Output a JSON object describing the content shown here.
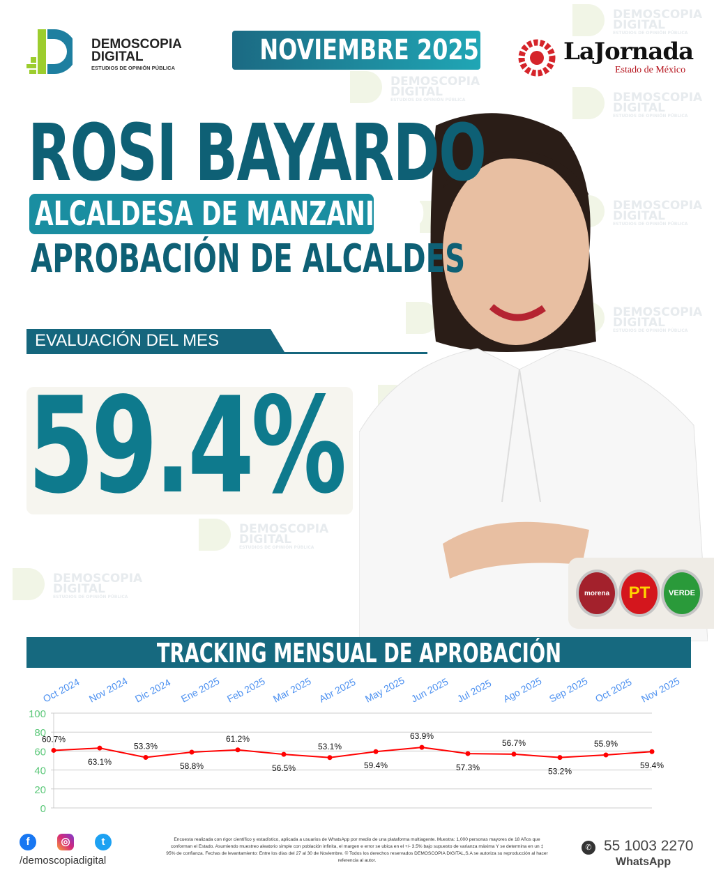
{
  "brand": {
    "name_line1": "DEMOSCOPIA",
    "name_line2": "DIGITAL",
    "tagline": "ESTUDIOS DE OPINIÓN PÚBLICA"
  },
  "watermark": {
    "line1": "DEMOSCOPIA",
    "line2": "DIGITAL",
    "line3": "ESTUDIOS DE OPINIÓN PÚBLICA"
  },
  "header": {
    "month": "NOVIEMBRE 2025"
  },
  "partner": {
    "name": "LaJornada",
    "subtitle": "Estado de México"
  },
  "headline": {
    "name": "ROSI BAYARDO",
    "role": "ALCALDESA DE MANZANILLO",
    "subtitle": "APROBACIÓN DE ALCALDES"
  },
  "evaluation": {
    "label": "EVALUACIÓN DEL MES",
    "value": "59.4%"
  },
  "parties": [
    {
      "name": "morena",
      "color": "#a3212c"
    },
    {
      "name": "PT",
      "color": "#d4161d"
    },
    {
      "name": "VERDE",
      "color": "#2a9a3a"
    }
  ],
  "tracking": {
    "title": "TRACKING MENSUAL DE APROBACIÓN"
  },
  "chart_data": {
    "type": "line",
    "categories": [
      "Oct 2024",
      "Nov 2024",
      "Dic 2024",
      "Ene 2025",
      "Feb 2025",
      "Mar 2025",
      "Abr 2025",
      "May 2025",
      "Jun 2025",
      "Jul 2025",
      "Ago 2025",
      "Sep 2025",
      "Oct 2025",
      "Nov 2025"
    ],
    "values": [
      60.7,
      63.1,
      53.3,
      58.8,
      61.2,
      56.5,
      53.1,
      59.4,
      63.9,
      57.3,
      56.7,
      53.2,
      55.9,
      59.4
    ],
    "data_labels": [
      "60.7%",
      "63.1%",
      "53.3%",
      "58.8%",
      "61.2%",
      "56.5%",
      "53.1%",
      "59.4%",
      "63.9%",
      "57.3%",
      "56.7%",
      "53.2%",
      "55.9%",
      "59.4%"
    ],
    "yticks": [
      0,
      20,
      40,
      60,
      80,
      100
    ],
    "ylim": [
      0,
      100
    ],
    "grid": true,
    "line_color": "#ff0000",
    "tick_color": "#4a8ff0",
    "ytick_color": "#5cc87a"
  },
  "footer": {
    "handle": "/demoscopiadigital",
    "note": "Encuesta realizada con rigor científico y estadístico, aplicada a usuarios de WhatsApp por medio de una plataforma multiagente. Muestra: 1,000 personas mayores de 18 Años que conforman el Estado. Asumiendo muestreo aleatorio simple con población infinita, el margen e error se ubica en el +/- 3.5% bajo supuesto de varianza máxima Y se determina en un ‡ 95% de confianza. Fechas de levantamiento: Entre los días del 27 al 30 de Noviembre. © Todos los derechos reservados DEMOSCOPIA DIGITAL,S.A se autoriza su reproducción al hacer referencia al autor.",
    "phone": "55 1003 2270",
    "phone_label": "WhatsApp"
  }
}
